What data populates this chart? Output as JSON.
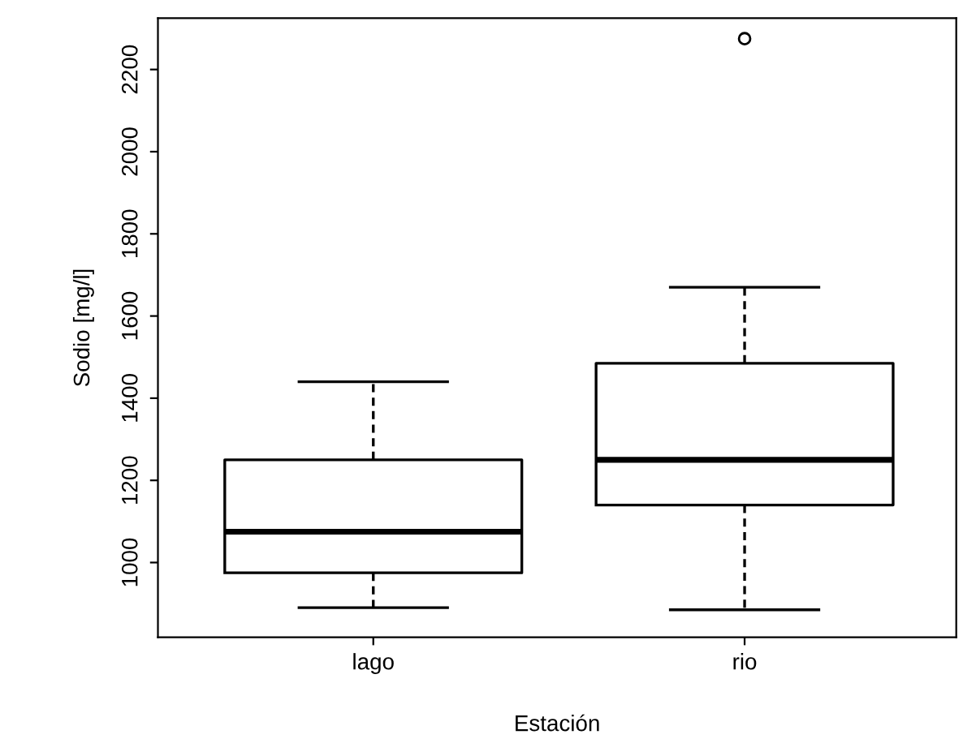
{
  "chart_data": {
    "type": "box",
    "xlabel": "Estación",
    "ylabel": "Sodio [mg/l]",
    "categories": [
      "lago",
      "rio"
    ],
    "boxes": [
      {
        "low": 890,
        "q1": 975,
        "median": 1075,
        "q3": 1250,
        "high": 1440
      },
      {
        "low": 885,
        "q1": 1140,
        "median": 1250,
        "q3": 1485,
        "high": 1670,
        "outliers": [
          2275
        ]
      }
    ],
    "ylim": [
      818,
      2325
    ],
    "yticks": [
      1000,
      1200,
      1400,
      1600,
      1800,
      2000,
      2200
    ],
    "grid": false,
    "color": "#000000"
  }
}
